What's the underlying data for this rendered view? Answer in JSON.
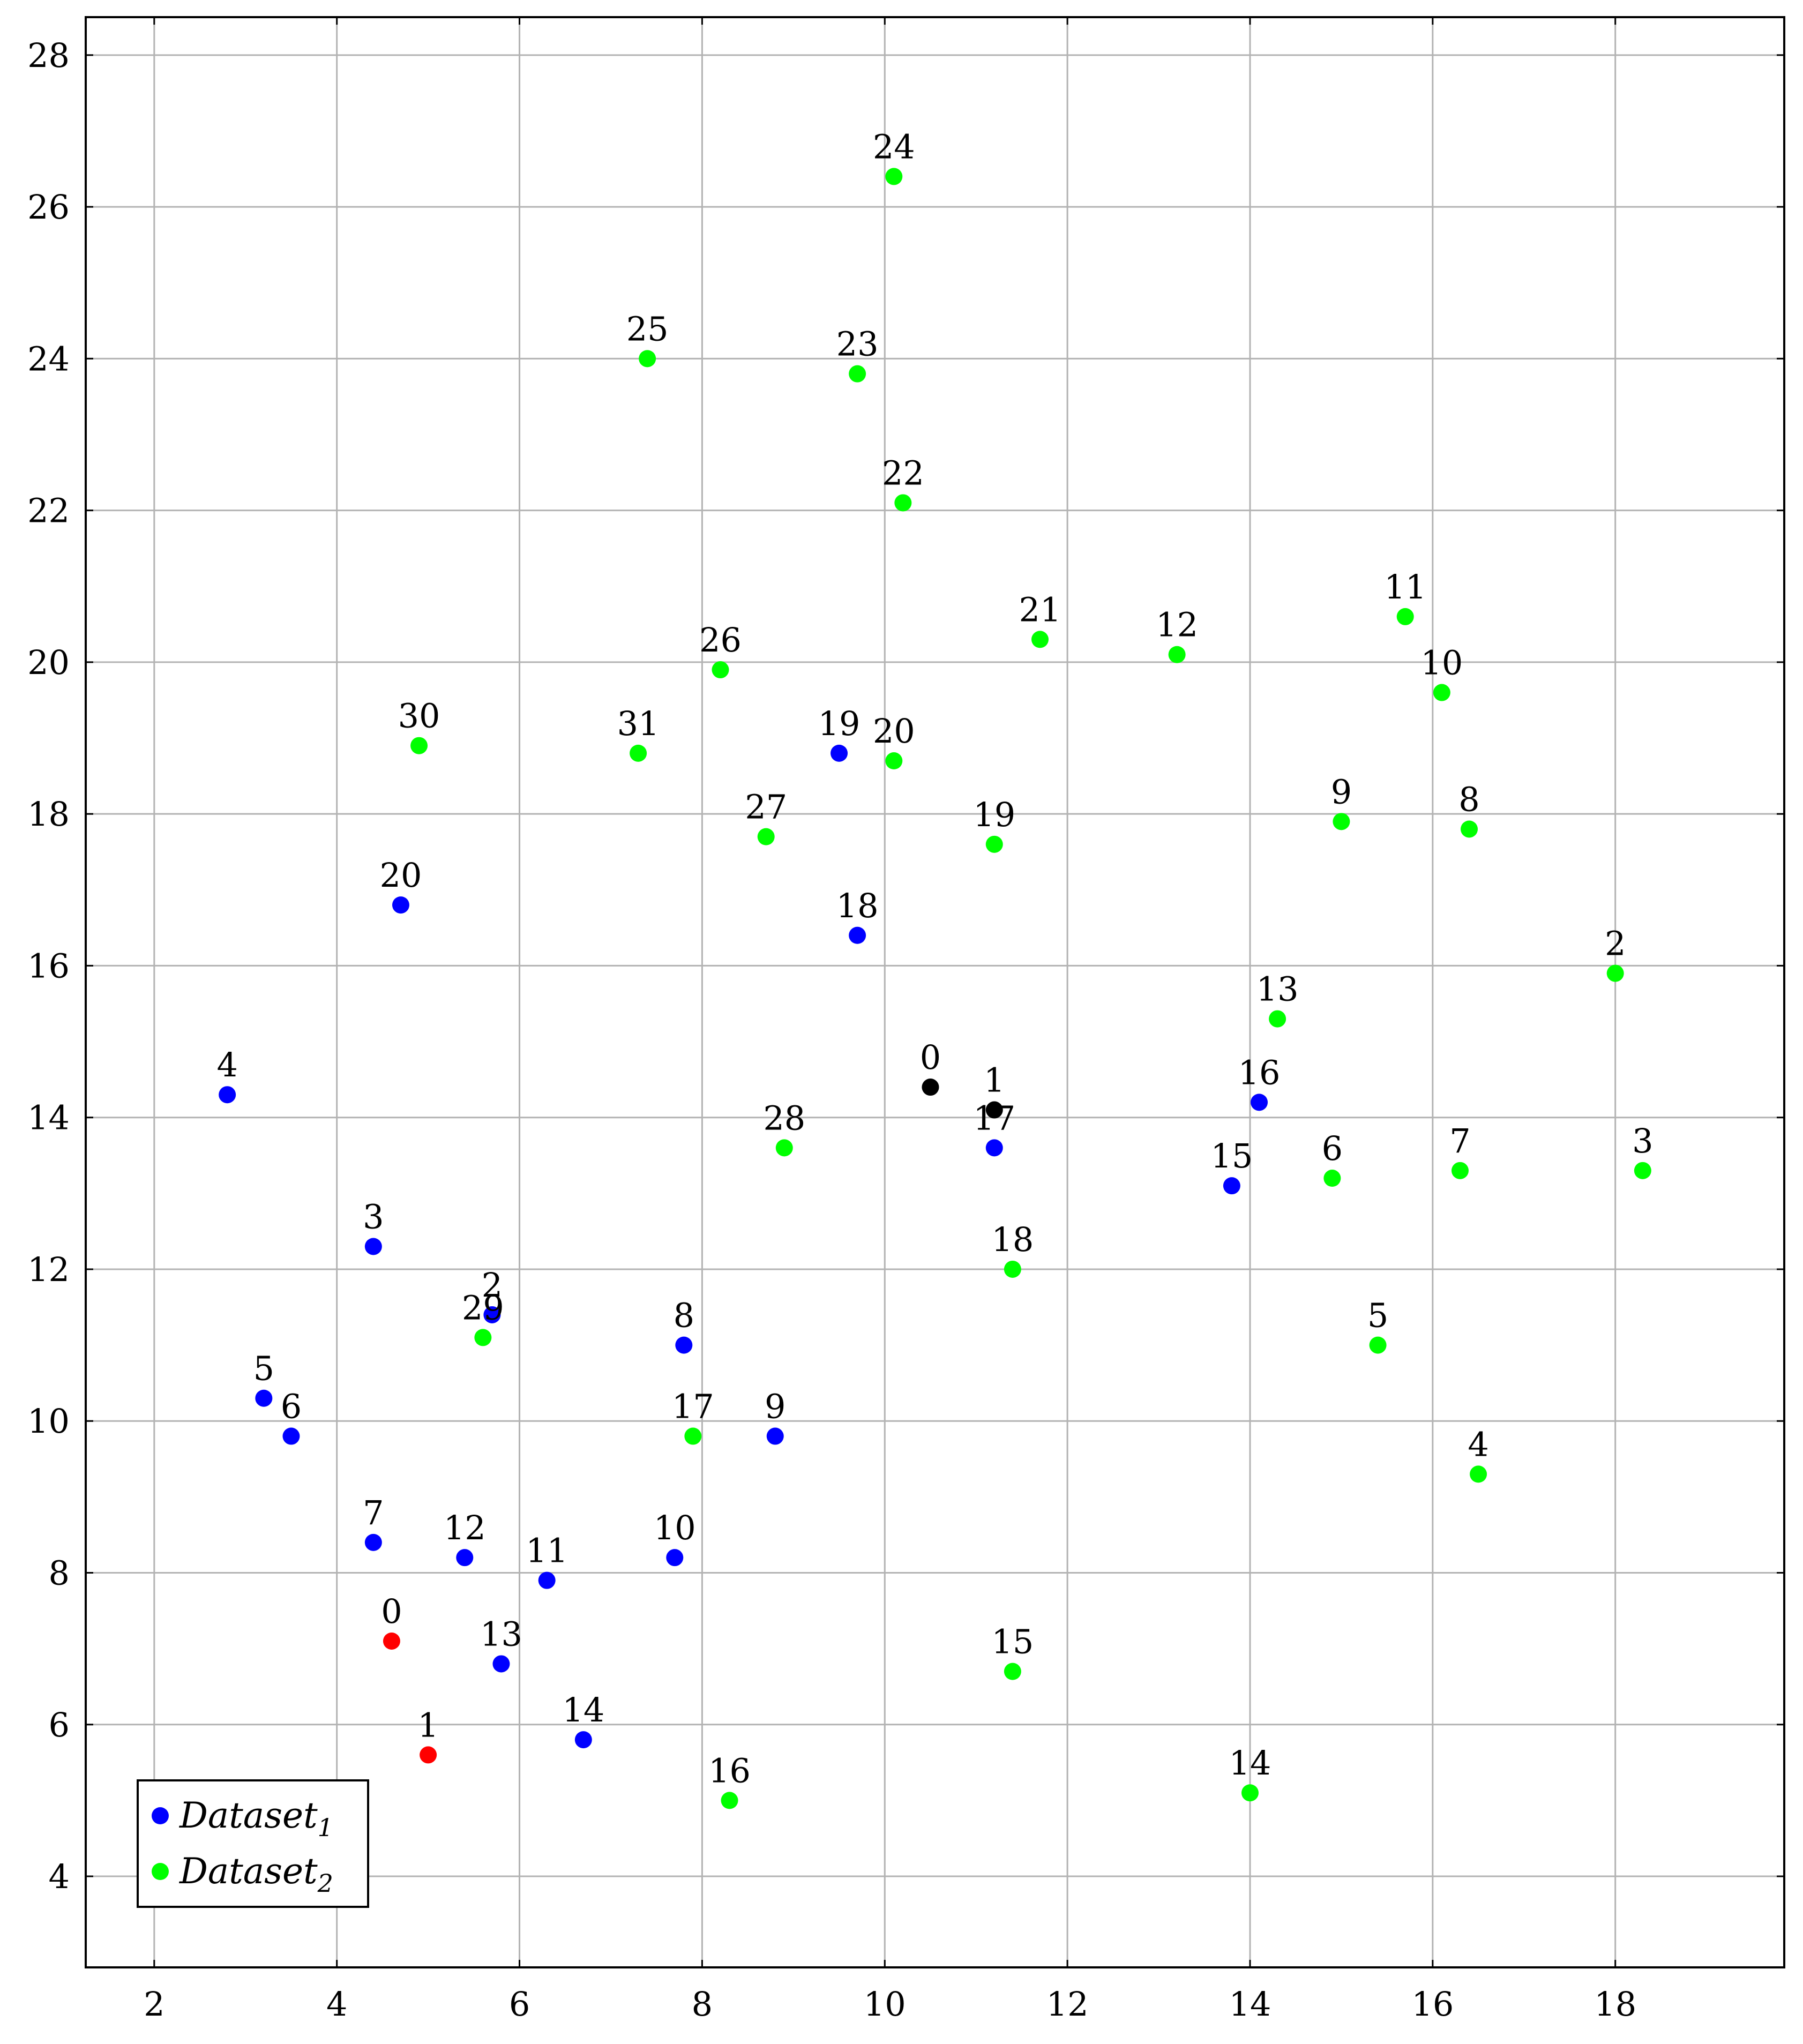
{
  "chart_data": {
    "type": "scatter",
    "title": "",
    "xlabel": "",
    "ylabel": "",
    "xlim": [
      1.25,
      19.85
    ],
    "ylim": [
      2.8,
      28.5
    ],
    "xticks": [
      2,
      4,
      6,
      8,
      10,
      12,
      14,
      16,
      18
    ],
    "yticks": [
      4,
      6,
      8,
      10,
      12,
      14,
      16,
      18,
      20,
      22,
      24,
      26,
      28
    ],
    "grid": true,
    "legend_position": "bottom-left",
    "colors": {
      "dataset1": "#0000ff",
      "dataset2": "#00ff00",
      "red": "#ff0000",
      "black": "#000000",
      "grid": "#b3b3b3"
    },
    "series": [
      {
        "name": "Dataset",
        "name_subscript": "1",
        "color": "#0000ff",
        "in_legend": true,
        "points": [
          {
            "label": "2",
            "x": 5.7,
            "y": 11.4
          },
          {
            "label": "3",
            "x": 4.4,
            "y": 12.3
          },
          {
            "label": "4",
            "x": 2.8,
            "y": 14.3
          },
          {
            "label": "5",
            "x": 3.2,
            "y": 10.3
          },
          {
            "label": "6",
            "x": 3.5,
            "y": 9.8
          },
          {
            "label": "7",
            "x": 4.4,
            "y": 8.4
          },
          {
            "label": "8",
            "x": 7.8,
            "y": 11.0
          },
          {
            "label": "9",
            "x": 8.8,
            "y": 9.8
          },
          {
            "label": "10",
            "x": 7.7,
            "y": 8.2
          },
          {
            "label": "11",
            "x": 6.3,
            "y": 7.9
          },
          {
            "label": "12",
            "x": 5.4,
            "y": 8.2
          },
          {
            "label": "13",
            "x": 5.8,
            "y": 6.8
          },
          {
            "label": "14",
            "x": 6.7,
            "y": 5.8
          },
          {
            "label": "15",
            "x": 13.8,
            "y": 13.1
          },
          {
            "label": "16",
            "x": 14.1,
            "y": 14.2
          },
          {
            "label": "17",
            "x": 11.2,
            "y": 13.6
          },
          {
            "label": "18",
            "x": 9.7,
            "y": 16.4
          },
          {
            "label": "19",
            "x": 9.5,
            "y": 18.8
          },
          {
            "label": "20",
            "x": 4.7,
            "y": 16.8
          }
        ]
      },
      {
        "name": "Dataset",
        "name_subscript": "2",
        "color": "#00ff00",
        "in_legend": true,
        "points": [
          {
            "label": "2",
            "x": 18.0,
            "y": 15.9
          },
          {
            "label": "3",
            "x": 18.3,
            "y": 13.3
          },
          {
            "label": "4",
            "x": 16.5,
            "y": 9.3
          },
          {
            "label": "5",
            "x": 15.4,
            "y": 11.0
          },
          {
            "label": "6",
            "x": 14.9,
            "y": 13.2
          },
          {
            "label": "7",
            "x": 16.3,
            "y": 13.3
          },
          {
            "label": "8",
            "x": 16.4,
            "y": 17.8
          },
          {
            "label": "9",
            "x": 15.0,
            "y": 17.9
          },
          {
            "label": "10",
            "x": 16.1,
            "y": 19.6
          },
          {
            "label": "11",
            "x": 15.7,
            "y": 20.6
          },
          {
            "label": "12",
            "x": 13.2,
            "y": 20.1
          },
          {
            "label": "13",
            "x": 14.3,
            "y": 15.3
          },
          {
            "label": "14",
            "x": 14.0,
            "y": 5.1
          },
          {
            "label": "15",
            "x": 11.4,
            "y": 6.7
          },
          {
            "label": "16",
            "x": 8.3,
            "y": 5.0
          },
          {
            "label": "17",
            "x": 7.9,
            "y": 9.8
          },
          {
            "label": "18",
            "x": 11.4,
            "y": 12.0
          },
          {
            "label": "19",
            "x": 11.2,
            "y": 17.6
          },
          {
            "label": "20",
            "x": 10.1,
            "y": 18.7
          },
          {
            "label": "21",
            "x": 11.7,
            "y": 20.3
          },
          {
            "label": "22",
            "x": 10.2,
            "y": 22.1
          },
          {
            "label": "23",
            "x": 9.7,
            "y": 23.8
          },
          {
            "label": "24",
            "x": 10.1,
            "y": 26.4
          },
          {
            "label": "25",
            "x": 7.4,
            "y": 24.0
          },
          {
            "label": "26",
            "x": 8.2,
            "y": 19.9
          },
          {
            "label": "27",
            "x": 8.7,
            "y": 17.7
          },
          {
            "label": "28",
            "x": 8.9,
            "y": 13.6
          },
          {
            "label": "29",
            "x": 5.6,
            "y": 11.1
          },
          {
            "label": "30",
            "x": 4.9,
            "y": 18.9
          },
          {
            "label": "31",
            "x": 7.3,
            "y": 18.8
          }
        ]
      },
      {
        "name": "",
        "color": "#ff0000",
        "in_legend": false,
        "points": [
          {
            "label": "0",
            "x": 4.6,
            "y": 7.1
          },
          {
            "label": "1",
            "x": 5.0,
            "y": 5.6
          }
        ]
      },
      {
        "name": "",
        "color": "#000000",
        "in_legend": false,
        "points": [
          {
            "label": "0",
            "x": 10.5,
            "y": 14.4
          },
          {
            "label": "1",
            "x": 11.2,
            "y": 14.1
          }
        ]
      }
    ]
  }
}
